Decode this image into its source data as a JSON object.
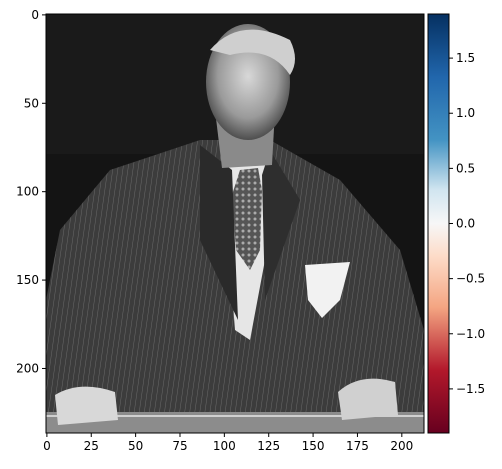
{
  "image": {
    "description_icon": "grayscale-portrait-image",
    "x_ticks": [
      "0",
      "25",
      "50",
      "75",
      "100",
      "125",
      "150",
      "175",
      "200"
    ],
    "x_tick_values": [
      0,
      25,
      50,
      75,
      100,
      125,
      150,
      175,
      200
    ],
    "y_ticks": [
      "0",
      "50",
      "100",
      "150",
      "200"
    ],
    "y_tick_values": [
      0,
      50,
      100,
      150,
      200
    ],
    "xlim": [
      -0.5,
      212.5
    ],
    "ylim": [
      236.5,
      -0.5
    ]
  },
  "colorbar": {
    "cmap": "RdBu",
    "range": [
      -1.9,
      1.9
    ],
    "ticks": [
      "1.5",
      "1.0",
      "0.5",
      "0.0",
      "−0.5",
      "−1.0",
      "−1.5"
    ],
    "tick_values": [
      1.5,
      1.0,
      0.5,
      0.0,
      -0.5,
      -1.0,
      -1.5
    ],
    "colors": {
      "top": "#053061",
      "upper": "#4393c3",
      "mid": "#f7f7f7",
      "lower": "#d6604d",
      "bottom": "#67001f"
    }
  }
}
